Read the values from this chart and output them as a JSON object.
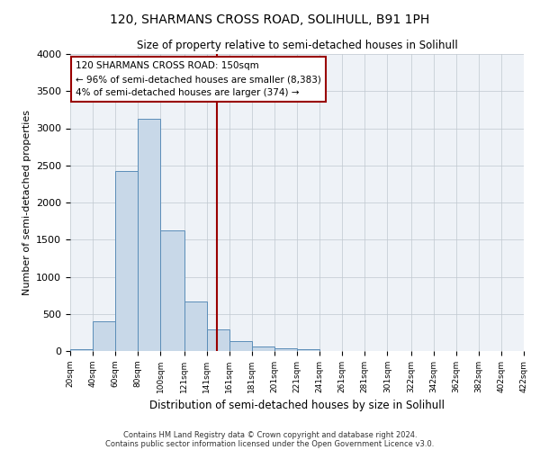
{
  "title": "120, SHARMANS CROSS ROAD, SOLIHULL, B91 1PH",
  "subtitle": "Size of property relative to semi-detached houses in Solihull",
  "xlabel": "Distribution of semi-detached houses by size in Solihull",
  "ylabel": "Number of semi-detached properties",
  "bar_color": "#c8d8e8",
  "bar_edge_color": "#5b8db8",
  "background_color": "#eef2f7",
  "grid_color": "#c0c8d0",
  "property_line_x": 150,
  "property_line_color": "#990000",
  "annotation_text": "120 SHARMANS CROSS ROAD: 150sqm\n← 96% of semi-detached houses are smaller (8,383)\n4% of semi-detached houses are larger (374) →",
  "annotation_box_color": "#ffffff",
  "annotation_box_edge": "#990000",
  "bin_edges": [
    20,
    40,
    60,
    80,
    100,
    121,
    141,
    161,
    181,
    201,
    221,
    241,
    261,
    281,
    301,
    322,
    342,
    362,
    382,
    402,
    422
  ],
  "bin_heights": [
    30,
    400,
    2420,
    3130,
    1620,
    670,
    290,
    130,
    60,
    40,
    30,
    5,
    0,
    0,
    0,
    0,
    0,
    0,
    0,
    0
  ],
  "tick_labels": [
    "20sqm",
    "40sqm",
    "60sqm",
    "80sqm",
    "100sqm",
    "121sqm",
    "141sqm",
    "161sqm",
    "181sqm",
    "201sqm",
    "221sqm",
    "241sqm",
    "261sqm",
    "281sqm",
    "301sqm",
    "322sqm",
    "342sqm",
    "362sqm",
    "382sqm",
    "402sqm",
    "422sqm"
  ],
  "ylim": [
    0,
    4000
  ],
  "yticks": [
    0,
    500,
    1000,
    1500,
    2000,
    2500,
    3000,
    3500,
    4000
  ],
  "footnote1": "Contains HM Land Registry data © Crown copyright and database right 2024.",
  "footnote2": "Contains public sector information licensed under the Open Government Licence v3.0."
}
